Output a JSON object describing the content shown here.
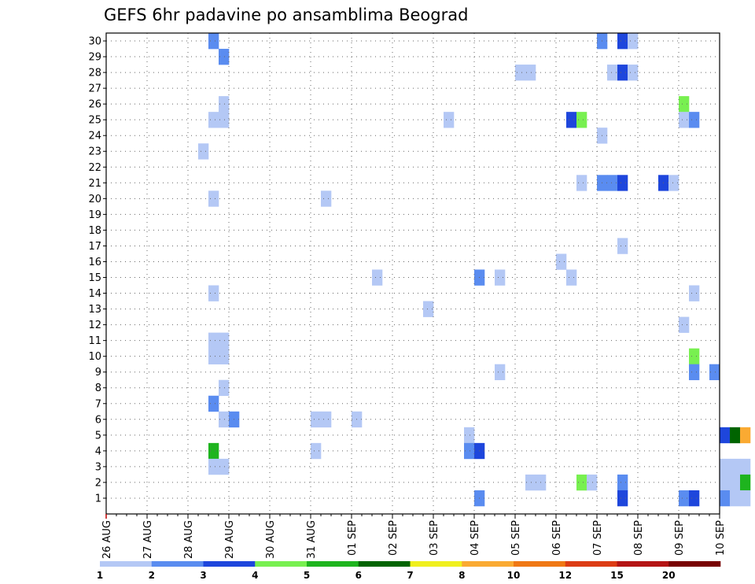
{
  "chart_data": {
    "type": "heatmap",
    "title": "GEFS 6hr padavine po ansamblima Beograd",
    "xlabel": "",
    "ylabel": "",
    "x_ticks": [
      "26 AUG",
      "27 AUG",
      "28 AUG",
      "29 AUG",
      "30 AUG",
      "31 AUG",
      "01 SEP",
      "02 SEP",
      "03 SEP",
      "04 SEP",
      "05 SEP",
      "06 SEP",
      "07 SEP",
      "08 SEP",
      "09 SEP",
      "10 SEP"
    ],
    "x_range": [
      "26 AUG 00Z",
      "10 SEP 00Z"
    ],
    "y_ticks": [
      1,
      2,
      3,
      4,
      5,
      6,
      7,
      8,
      9,
      10,
      11,
      12,
      13,
      14,
      15,
      16,
      17,
      18,
      19,
      20,
      21,
      22,
      23,
      24,
      25,
      26,
      27,
      28,
      29,
      30
    ],
    "y_range": [
      1,
      30
    ],
    "grid": true,
    "colorbar": {
      "labels": [
        "1",
        "2",
        "3",
        "4",
        "5",
        "6",
        "7",
        "8",
        "10",
        "12",
        "15",
        "20"
      ],
      "colors": [
        "#b4c8f5",
        "#5a8cf0",
        "#1e46dc",
        "#78f050",
        "#1eb41e",
        "#006400",
        "#f0f01e",
        "#faaa32",
        "#f07814",
        "#dc3c14",
        "#b41414",
        "#780000"
      ]
    },
    "cells_note": "each cell = [forecast step in 6h from 26 AUG 00Z, member 1-30, precipitation class 1-12]",
    "cells": [
      [
        10,
        30,
        2
      ],
      [
        48,
        30,
        2
      ],
      [
        50,
        30,
        3
      ],
      [
        51,
        30,
        1
      ],
      [
        70,
        30,
        2
      ],
      [
        71,
        30,
        1
      ],
      [
        11,
        29,
        2
      ],
      [
        40,
        28,
        1
      ],
      [
        41,
        28,
        1
      ],
      [
        49,
        28,
        1
      ],
      [
        50,
        28,
        3
      ],
      [
        51,
        28,
        1
      ],
      [
        67,
        28,
        1
      ],
      [
        69,
        28,
        2
      ],
      [
        70,
        28,
        3
      ],
      [
        71,
        28,
        5
      ],
      [
        72,
        28,
        2
      ],
      [
        67,
        27,
        1
      ],
      [
        11,
        26,
        1
      ],
      [
        56,
        26,
        4
      ],
      [
        70,
        26,
        2
      ],
      [
        77,
        26,
        2
      ],
      [
        10,
        25,
        1
      ],
      [
        11,
        25,
        1
      ],
      [
        33,
        25,
        1
      ],
      [
        45,
        25,
        3
      ],
      [
        46,
        25,
        4
      ],
      [
        56,
        25,
        1
      ],
      [
        57,
        25,
        2
      ],
      [
        66,
        25,
        3
      ],
      [
        67,
        25,
        1
      ],
      [
        70,
        25,
        1
      ],
      [
        48,
        24,
        1
      ],
      [
        65,
        24,
        2
      ],
      [
        66,
        24,
        4
      ],
      [
        67,
        24,
        12
      ],
      [
        68,
        24,
        3
      ],
      [
        69,
        24,
        12
      ],
      [
        70,
        24,
        3
      ],
      [
        71,
        24,
        1
      ],
      [
        9,
        23,
        1
      ],
      [
        46,
        21,
        1
      ],
      [
        48,
        21,
        2
      ],
      [
        49,
        21,
        2
      ],
      [
        50,
        21,
        3
      ],
      [
        54,
        21,
        3
      ],
      [
        55,
        21,
        1
      ],
      [
        10,
        20,
        1
      ],
      [
        21,
        20,
        1
      ],
      [
        69,
        18,
        1
      ],
      [
        70,
        18,
        6
      ],
      [
        71,
        18,
        1
      ],
      [
        50,
        17,
        1
      ],
      [
        44,
        16,
        1
      ],
      [
        26,
        15,
        1
      ],
      [
        36,
        15,
        2
      ],
      [
        38,
        15,
        1
      ],
      [
        45,
        15,
        1
      ],
      [
        10,
        14,
        1
      ],
      [
        57,
        14,
        1
      ],
      [
        31,
        13,
        1
      ],
      [
        56,
        12,
        1
      ],
      [
        10,
        11,
        1
      ],
      [
        11,
        11,
        1
      ],
      [
        10,
        10,
        1
      ],
      [
        11,
        10,
        1
      ],
      [
        57,
        10,
        4
      ],
      [
        38,
        9,
        1
      ],
      [
        57,
        9,
        2
      ],
      [
        59,
        9,
        2
      ],
      [
        71,
        9,
        1
      ],
      [
        72,
        9,
        1
      ],
      [
        11,
        8,
        1
      ],
      [
        69,
        8,
        9
      ],
      [
        70,
        8,
        3
      ],
      [
        10,
        7,
        2
      ],
      [
        11,
        6,
        1
      ],
      [
        12,
        6,
        2
      ],
      [
        20,
        6,
        1
      ],
      [
        21,
        6,
        1
      ],
      [
        24,
        6,
        1
      ],
      [
        73,
        6,
        2
      ],
      [
        35,
        5,
        1
      ],
      [
        60,
        5,
        3
      ],
      [
        61,
        5,
        6
      ],
      [
        62,
        5,
        8
      ],
      [
        10,
        4,
        5
      ],
      [
        20,
        4,
        1
      ],
      [
        35,
        4,
        2
      ],
      [
        36,
        4,
        3
      ],
      [
        10,
        3,
        1
      ],
      [
        11,
        3,
        1
      ],
      [
        60,
        3,
        1
      ],
      [
        61,
        3,
        1
      ],
      [
        62,
        3,
        1
      ],
      [
        41,
        2,
        1
      ],
      [
        42,
        2,
        1
      ],
      [
        46,
        2,
        4
      ],
      [
        47,
        2,
        1
      ],
      [
        50,
        2,
        2
      ],
      [
        60,
        2,
        1
      ],
      [
        61,
        2,
        1
      ],
      [
        62,
        2,
        5
      ],
      [
        36,
        1,
        2
      ],
      [
        50,
        1,
        3
      ],
      [
        56,
        1,
        2
      ],
      [
        57,
        1,
        3
      ],
      [
        60,
        1,
        2
      ],
      [
        61,
        1,
        1
      ],
      [
        62,
        1,
        1
      ]
    ]
  }
}
